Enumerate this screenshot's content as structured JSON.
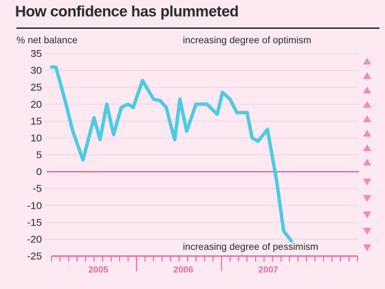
{
  "header": {
    "title": "How confidence has plummeted"
  },
  "colors": {
    "background": "#fce9f2",
    "line": "#4ccbe2",
    "zero_line": "#e26aa3",
    "arrows": "#ec8cbb",
    "grid": "#f2cfe0",
    "axis": "#e26aa3"
  },
  "chart_data": {
    "type": "line",
    "title": "How confidence has plummeted",
    "ylabel": "% net balance",
    "ylim": [
      -25,
      35
    ],
    "yticks": [
      35,
      30,
      25,
      20,
      15,
      10,
      5,
      0,
      -5,
      -10,
      -15,
      -20,
      -25
    ],
    "ytick_labels": [
      "35",
      "30",
      "25",
      "20",
      "15",
      "10",
      "5",
      "0",
      "-5",
      "-10",
      "-15",
      "-20",
      "-25"
    ],
    "xlim": [
      0,
      36
    ],
    "x_year_labels": [
      {
        "label": "2005",
        "x": 5.5
      },
      {
        "label": "2006",
        "x": 15.5
      },
      {
        "label": "2007",
        "x": 25.5
      }
    ],
    "x_year_boundaries": [
      10,
      20
    ],
    "grid": true,
    "series": [
      {
        "values": [
          {
            "x": 0.0,
            "y": 31
          },
          {
            "x": 0.5,
            "y": 31
          },
          {
            "x": 1.5,
            "y": 22
          },
          {
            "x": 2.5,
            "y": 12
          },
          {
            "x": 3.7,
            "y": 3.5
          },
          {
            "x": 5.0,
            "y": 16
          },
          {
            "x": 5.7,
            "y": 9.5
          },
          {
            "x": 6.5,
            "y": 20
          },
          {
            "x": 7.3,
            "y": 11
          },
          {
            "x": 7.8,
            "y": 15.5
          },
          {
            "x": 8.2,
            "y": 19
          },
          {
            "x": 9.0,
            "y": 20
          },
          {
            "x": 9.6,
            "y": 19
          },
          {
            "x": 10.7,
            "y": 27
          },
          {
            "x": 12.0,
            "y": 21.5
          },
          {
            "x": 12.8,
            "y": 21
          },
          {
            "x": 13.5,
            "y": 19
          },
          {
            "x": 14.0,
            "y": 14
          },
          {
            "x": 14.5,
            "y": 9.5
          },
          {
            "x": 15.1,
            "y": 21.5
          },
          {
            "x": 15.9,
            "y": 12
          },
          {
            "x": 17.0,
            "y": 20
          },
          {
            "x": 18.3,
            "y": 20
          },
          {
            "x": 19.5,
            "y": 17
          },
          {
            "x": 20.1,
            "y": 23.5
          },
          {
            "x": 21.0,
            "y": 21.5
          },
          {
            "x": 21.8,
            "y": 17.5
          },
          {
            "x": 23.0,
            "y": 17.5
          },
          {
            "x": 23.6,
            "y": 10
          },
          {
            "x": 24.3,
            "y": 9
          },
          {
            "x": 25.4,
            "y": 12.5
          },
          {
            "x": 26.5,
            "y": -3
          },
          {
            "x": 27.3,
            "y": -17.5
          },
          {
            "x": 28.2,
            "y": -20.5
          }
        ]
      }
    ],
    "annotations": {
      "top": "increasing degree of optimism",
      "bottom": "increasing degree of pessimism"
    },
    "up_arrow_count": 8,
    "down_arrow_count": 5
  }
}
